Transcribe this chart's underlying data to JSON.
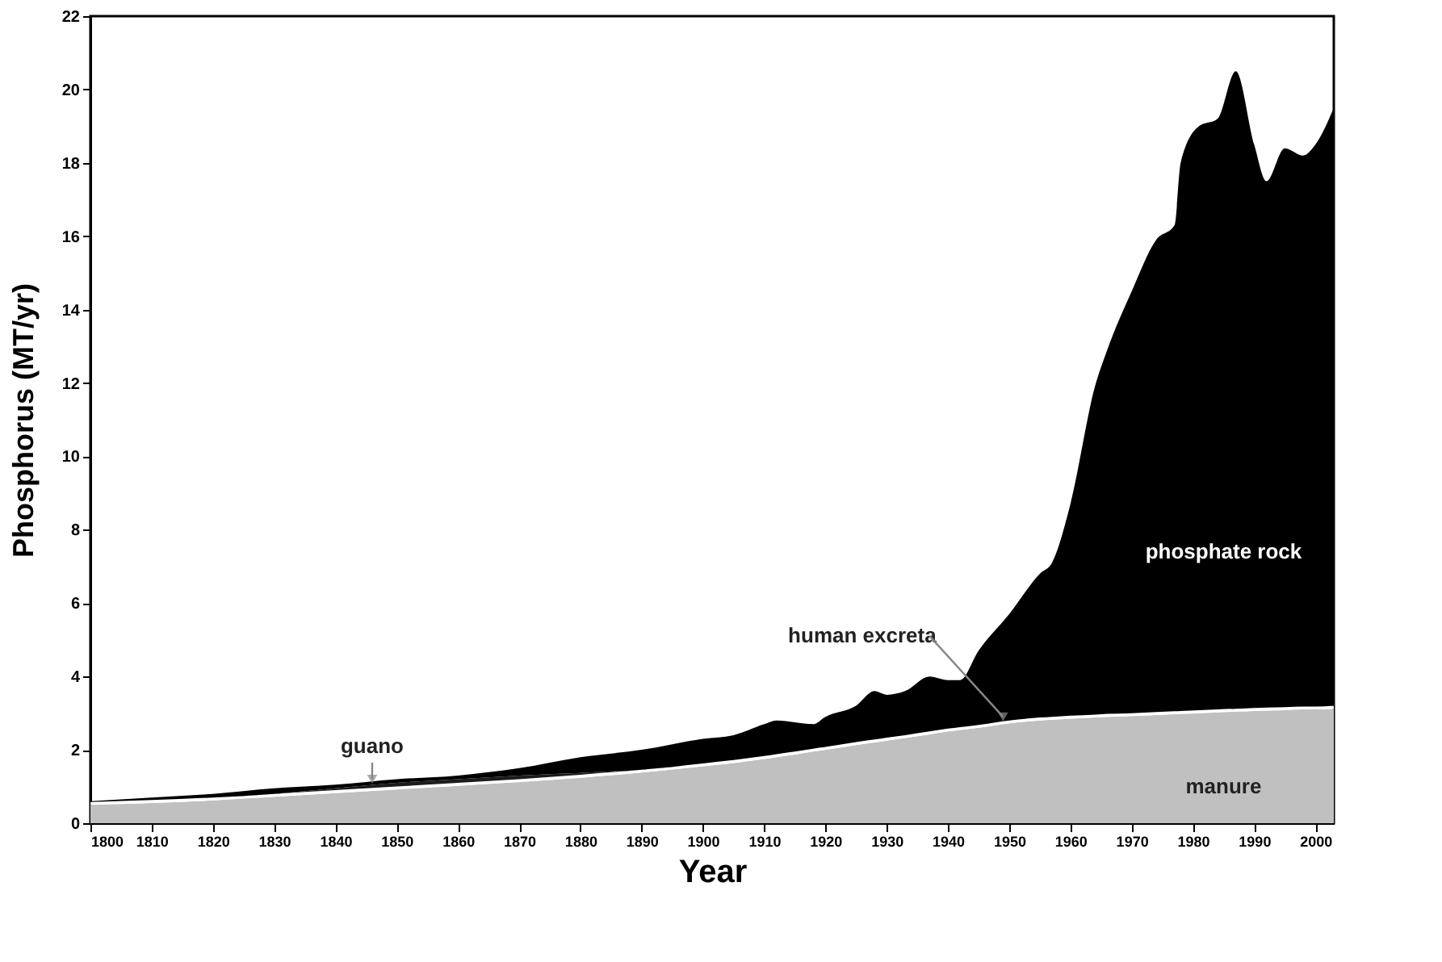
{
  "chart_data": {
    "type": "area",
    "stacked": true,
    "xlabel": "Year",
    "ylabel": "Phosphorus (MT/yr)",
    "x": [
      1800,
      1810,
      1820,
      1830,
      1840,
      1850,
      1860,
      1870,
      1880,
      1890,
      1900,
      1905,
      1910,
      1912,
      1915,
      1918,
      1920,
      1925,
      1928,
      1930,
      1933,
      1937,
      1940,
      1942,
      1945,
      1950,
      1955,
      1957,
      1960,
      1964,
      1966,
      1970,
      1974,
      1977,
      1978,
      1981,
      1984,
      1987,
      1990,
      1992,
      1995,
      1998,
      2000,
      2003
    ],
    "series": [
      {
        "name": "manure",
        "color": "#c0c0c0",
        "values": [
          0.5,
          0.55,
          0.62,
          0.72,
          0.82,
          0.92,
          1.02,
          1.12,
          1.24,
          1.38,
          1.55,
          1.64,
          1.75,
          1.8,
          1.87,
          1.95,
          2.0,
          2.13,
          2.2,
          2.25,
          2.32,
          2.42,
          2.5,
          2.54,
          2.6,
          2.72,
          2.8,
          2.82,
          2.85,
          2.88,
          2.9,
          2.92,
          2.95,
          2.97,
          2.98,
          3.0,
          3.02,
          3.04,
          3.06,
          3.07,
          3.08,
          3.1,
          3.1,
          3.12
        ]
      },
      {
        "name": "human excreta",
        "color": "#ffffff",
        "values": [
          0.08,
          0.08,
          0.08,
          0.08,
          0.08,
          0.08,
          0.08,
          0.08,
          0.08,
          0.08,
          0.08,
          0.08,
          0.08,
          0.08,
          0.08,
          0.08,
          0.08,
          0.08,
          0.08,
          0.08,
          0.08,
          0.08,
          0.08,
          0.08,
          0.08,
          0.08,
          0.08,
          0.08,
          0.08,
          0.08,
          0.08,
          0.08,
          0.08,
          0.08,
          0.08,
          0.08,
          0.08,
          0.08,
          0.08,
          0.08,
          0.08,
          0.08,
          0.08,
          0.08
        ]
      },
      {
        "name": "guano",
        "color": "#1c1c1c",
        "values": [
          0,
          0,
          0,
          0,
          0.05,
          0.1,
          0.1,
          0.1,
          0.05,
          0,
          0,
          0,
          0,
          0,
          0,
          0,
          0,
          0,
          0,
          0,
          0,
          0,
          0,
          0,
          0,
          0,
          0,
          0,
          0,
          0,
          0,
          0,
          0,
          0,
          0,
          0,
          0,
          0,
          0,
          0,
          0,
          0,
          0,
          0
        ]
      },
      {
        "name": "phosphate rock",
        "color": "#000000",
        "values": [
          0.02,
          0.07,
          0.1,
          0.15,
          0.1,
          0.1,
          0.1,
          0.2,
          0.43,
          0.54,
          0.67,
          0.68,
          0.87,
          0.92,
          0.8,
          0.67,
          0.82,
          0.99,
          1.32,
          1.17,
          1.2,
          1.5,
          1.32,
          1.28,
          2.02,
          2.9,
          3.92,
          4.2,
          5.77,
          8.94,
          9.92,
          11.5,
          12.87,
          13.25,
          14.94,
          15.92,
          16.1,
          17.38,
          15.36,
          14.35,
          15.24,
          15.02,
          15.32,
          16.3
        ]
      }
    ],
    "xlim": [
      1800,
      2003
    ],
    "xticks": [
      1800,
      1810,
      1820,
      1830,
      1840,
      1850,
      1860,
      1870,
      1880,
      1890,
      1900,
      1910,
      1920,
      1930,
      1940,
      1950,
      1960,
      1970,
      1980,
      1990,
      2000
    ],
    "ylim": [
      0,
      22
    ],
    "yticks": [
      0,
      2,
      4,
      6,
      8,
      10,
      12,
      14,
      16,
      18,
      20,
      22
    ],
    "grid": false,
    "legend": false
  }
}
